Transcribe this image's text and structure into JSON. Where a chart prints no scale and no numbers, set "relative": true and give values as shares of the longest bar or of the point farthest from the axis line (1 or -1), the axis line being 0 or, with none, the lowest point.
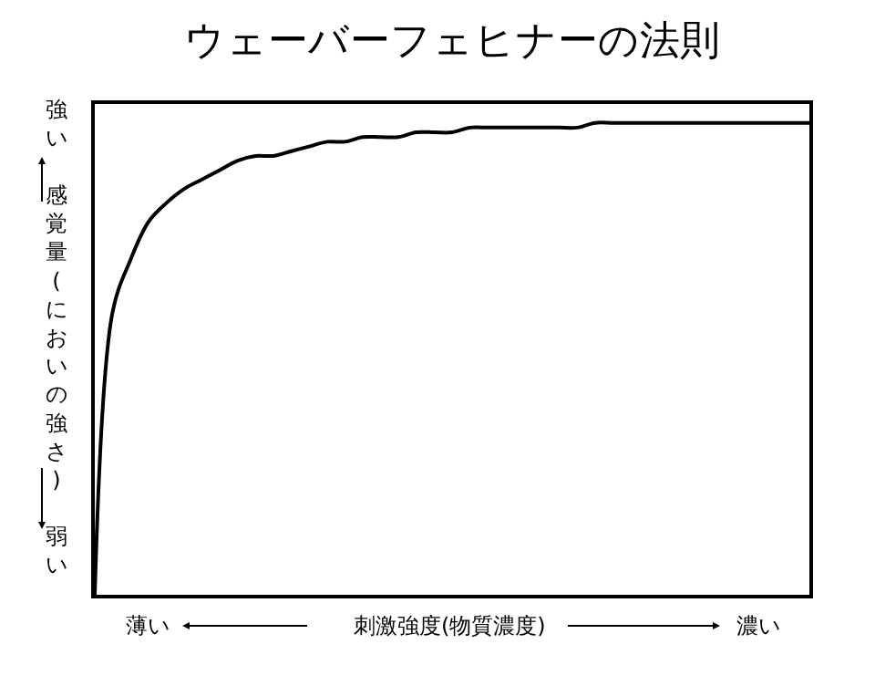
{
  "chart_data": {
    "type": "line",
    "title": "ウェーバーフェヒナーの法則",
    "xlabel": "刺激強度(物質濃度)",
    "ylabel": "感覚量(においの強さ)",
    "annotations": [
      "強い",
      "弱い",
      "薄い",
      "濃い"
    ],
    "relative": true,
    "color": "#000000",
    "marker": "none",
    "line_style": "solid",
    "categories": [
      null,
      null,
      null,
      null,
      null,
      null,
      null,
      null,
      null,
      null,
      null,
      null,
      null,
      null,
      null,
      null,
      null,
      null,
      null,
      null,
      null,
      null,
      null,
      null,
      null,
      null,
      null,
      null,
      null,
      null,
      null,
      null,
      null,
      null,
      null,
      null,
      null,
      null,
      null,
      null,
      null
    ],
    "values": [
      0,
      0.6,
      0.71,
      0.79,
      0.83,
      0.86,
      0.88,
      0.9,
      0.92,
      0.93,
      0.93,
      0.94,
      0.95,
      0.96,
      0.96,
      0.97,
      0.97,
      0.97,
      0.98,
      0.98,
      0.98,
      0.99,
      0.99,
      0.99,
      0.99,
      0.99,
      0.99,
      0.99,
      1,
      1,
      1,
      1,
      1,
      1,
      1,
      1,
      1,
      1,
      1,
      1,
      1
    ]
  }
}
